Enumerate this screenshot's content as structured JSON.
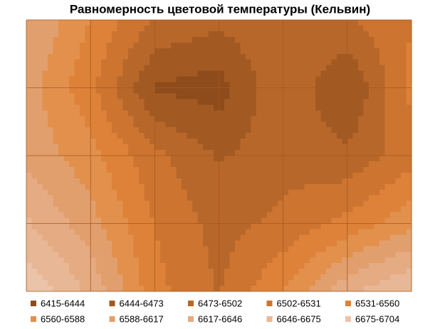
{
  "chart_data": {
    "type": "contour",
    "title": "Равномерность цветовой температуры (Кельвин)",
    "levels": [
      6415,
      6444,
      6473,
      6502,
      6531,
      6560,
      6588,
      6617,
      6646,
      6675,
      6704
    ],
    "bands": [
      {
        "label": "6415-6444",
        "color": "#8e4c1c"
      },
      {
        "label": "6444-6473",
        "color": "#a35a22"
      },
      {
        "label": "6473-6502",
        "color": "#b8672a"
      },
      {
        "label": "6502-6531",
        "color": "#cc7430"
      },
      {
        "label": "6531-6560",
        "color": "#dd8238"
      },
      {
        "label": "6560-6588",
        "color": "#e2904c"
      },
      {
        "label": "6588-6617",
        "color": "#e29f6e"
      },
      {
        "label": "6617-6646",
        "color": "#e5ab82"
      },
      {
        "label": "6646-6675",
        "color": "#e8b796"
      },
      {
        "label": "6675-6704",
        "color": "#ebc3a8"
      }
    ],
    "z": [
      [
        6620,
        6560,
        6500,
        6480,
        6500,
        6500,
        6530
      ],
      [
        6600,
        6540,
        6440,
        6430,
        6500,
        6440,
        6540
      ],
      [
        6610,
        6570,
        6510,
        6470,
        6490,
        6480,
        6520
      ],
      [
        6650,
        6600,
        6530,
        6490,
        6510,
        6540,
        6580
      ],
      [
        6700,
        6640,
        6540,
        6500,
        6560,
        6640,
        6680
      ]
    ],
    "grid": true
  }
}
